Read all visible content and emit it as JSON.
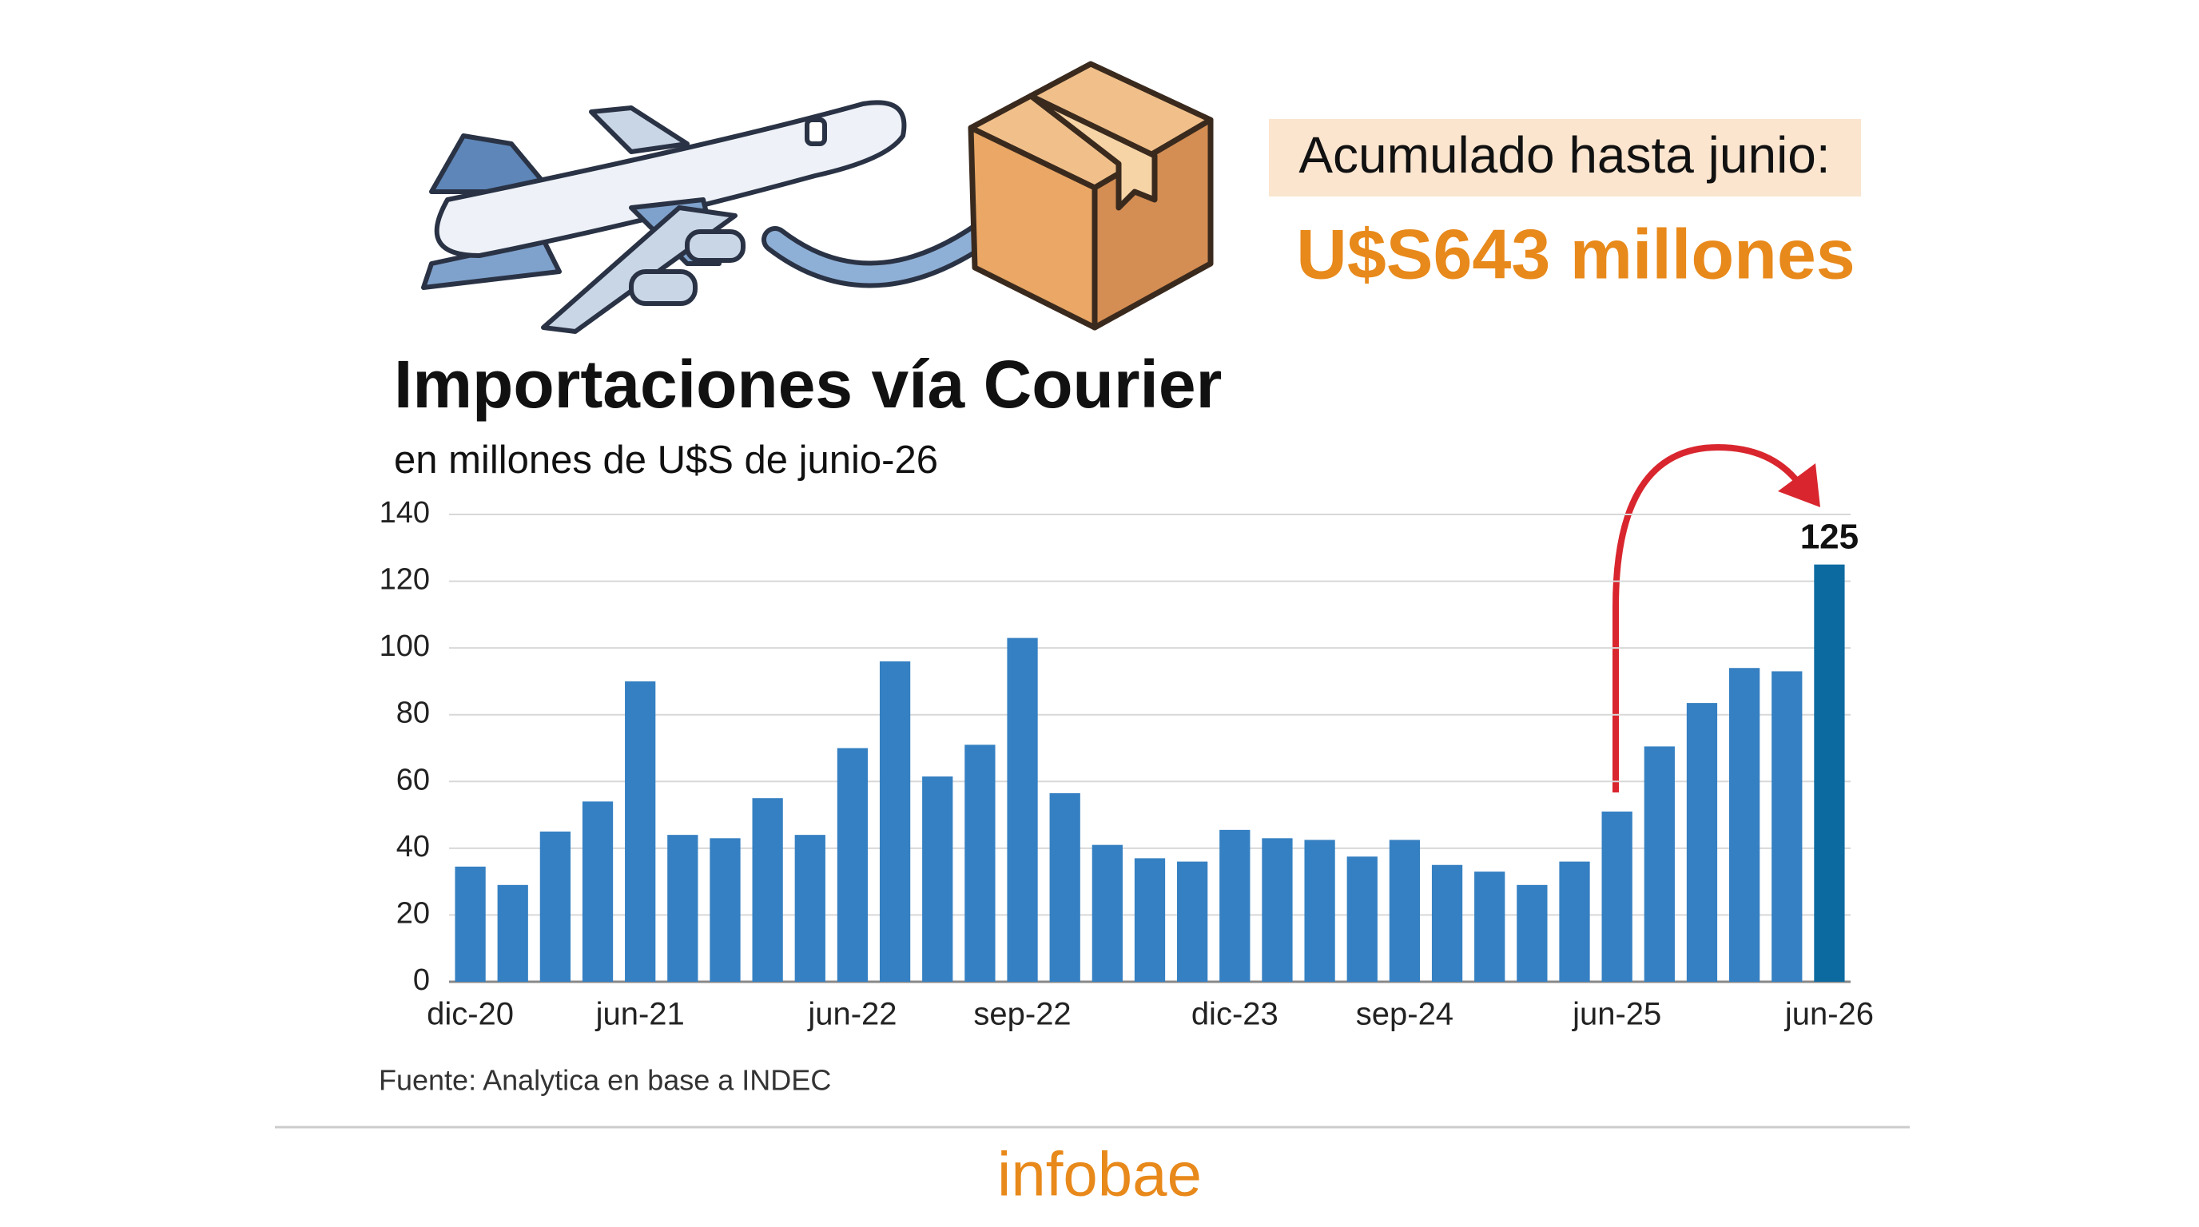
{
  "chart_data": {
    "type": "bar",
    "title": "Importaciones vía Courier",
    "subtitle": "en millones de U$S de junio-26",
    "header_label": "Acumulado hasta junio:",
    "header_value": "U$S643 millones",
    "source": "Fuente: Analytica en base a INDEC",
    "brand": "infobae",
    "categories": [
      "dic-20",
      null,
      null,
      null,
      "jun-21",
      null,
      null,
      null,
      null,
      "jun-22",
      null,
      null,
      null,
      "sep-22",
      null,
      null,
      null,
      null,
      "dic-23",
      null,
      null,
      null,
      "sep-24",
      null,
      null,
      null,
      null,
      "jun-25",
      null,
      null,
      null,
      null,
      "jun-26"
    ],
    "values": [
      34.5,
      29,
      45,
      54,
      90,
      44,
      43,
      55,
      44,
      70,
      96,
      61.5,
      71,
      103,
      56.5,
      41,
      37,
      36,
      45.5,
      43,
      42.5,
      37.5,
      42.5,
      35,
      33,
      29,
      36,
      51,
      70.5,
      83.5,
      94,
      93,
      125
    ],
    "colors": [
      "#3580c2",
      "#3580c2",
      "#3580c2",
      "#3580c2",
      "#3580c2",
      "#3580c2",
      "#3580c2",
      "#3580c2",
      "#3580c2",
      "#3580c2",
      "#3580c2",
      "#3580c2",
      "#3580c2",
      "#3580c2",
      "#3580c2",
      "#3580c2",
      "#3580c2",
      "#3580c2",
      "#3580c2",
      "#3580c2",
      "#3580c2",
      "#3580c2",
      "#3580c2",
      "#3580c2",
      "#3580c2",
      "#3580c2",
      "#3580c2",
      "#3580c2",
      "#3580c2",
      "#3580c2",
      "#3580c2",
      "#3580c2",
      "#0d6aa0"
    ],
    "labeled_bars": [
      32
    ],
    "ylim": [
      0,
      140
    ],
    "yticks": [
      0,
      20,
      40,
      60,
      80,
      100,
      120,
      140
    ],
    "grid": true
  }
}
